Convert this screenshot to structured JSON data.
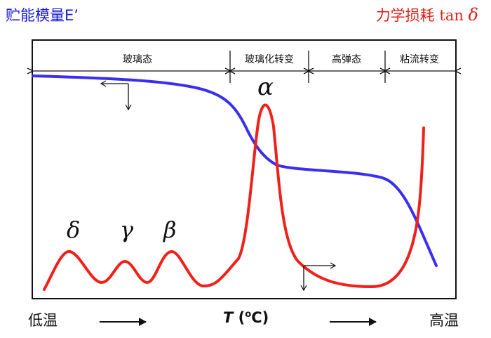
{
  "labels": {
    "storage_modulus": "贮能模量E’",
    "loss_prefix": "力学损耗",
    "loss_fn": "tan",
    "loss_symbol": "δ",
    "x_low": "低温",
    "x_high": "高温",
    "x_axis_var": "T",
    "x_axis_unit_open": " (",
    "x_axis_unit_sup": "o",
    "x_axis_unit_close": "C)"
  },
  "regions": [
    {
      "label": "玻璃态"
    },
    {
      "label": "玻璃化转变"
    },
    {
      "label": "高弹态"
    },
    {
      "label": "粘流转变"
    }
  ],
  "relaxations": {
    "alpha": "α",
    "beta": "β",
    "gamma": "γ",
    "delta": "δ"
  },
  "colors": {
    "modulus_curve": "#3a2ff0",
    "loss_curve": "#f0201a",
    "modulus_label": "#1a1ad6",
    "loss_label": "#e0201a"
  }
}
